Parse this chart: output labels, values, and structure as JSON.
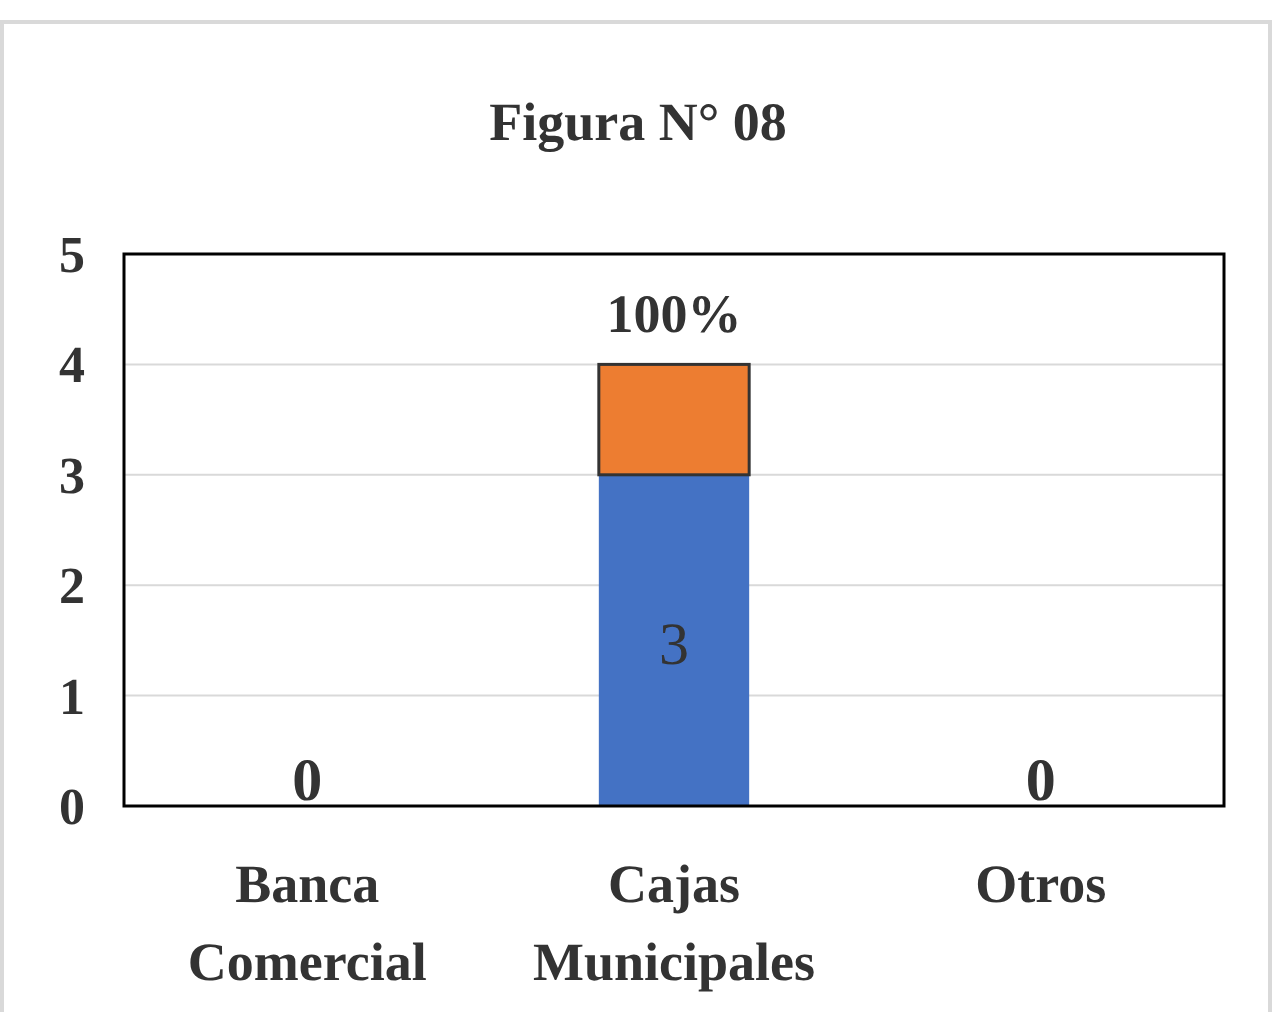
{
  "chart_data": {
    "type": "bar",
    "title": "Figura N° 08",
    "stacked": true,
    "categories": [
      "Banca Comercial",
      "Cajas Municipales",
      "Otros"
    ],
    "series": [
      {
        "color": "#4472c4",
        "values": [
          0,
          3,
          0
        ],
        "value_labels": [
          "0",
          "3",
          "0"
        ]
      },
      {
        "color": "#ed7d31",
        "values": [
          0,
          1,
          0
        ],
        "value_labels": [
          null,
          "100%",
          null
        ]
      }
    ],
    "ylim": [
      0,
      5
    ],
    "yticks": [
      0,
      1,
      2,
      3,
      4,
      5
    ],
    "grid": "y"
  }
}
